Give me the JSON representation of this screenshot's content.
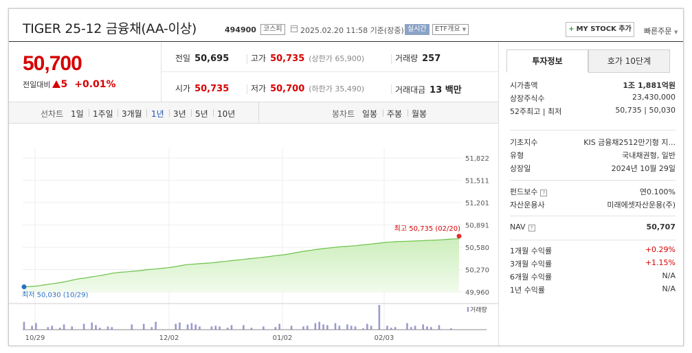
{
  "header": {
    "title": "TIGER 25-12 금융채(AA-이상)",
    "code": "494900",
    "market": "코스피",
    "datetime": "2025.02.20 11:58 기준(장중)",
    "realtime": "실시간",
    "etf_overview": "ETF개요",
    "mystock": "MY STOCK 추가",
    "quick_order": "빠른주문"
  },
  "price": {
    "current": "50,700",
    "change_label": "전일대비",
    "change": "5",
    "change_pct": "+0.01%"
  },
  "stats": {
    "prev_close_label": "전일",
    "prev_close": "50,695",
    "high_label": "고가",
    "high": "50,735",
    "upper_limit": "(상한가 65,900)",
    "volume_label": "거래량",
    "volume": "257",
    "open_label": "시가",
    "open": "50,735",
    "low_label": "저가",
    "low": "50,700",
    "lower_limit": "(하한가 35,490)",
    "amount_label": "거래대금",
    "amount": "13 백만"
  },
  "chart_tabs": {
    "line_label": "선차트",
    "periods": [
      "1일",
      "1주일",
      "3개월",
      "1년",
      "3년",
      "5년",
      "10년"
    ],
    "selected": "1년",
    "candle_label": "봉차트",
    "candles": [
      "일봉",
      "주봉",
      "월봉"
    ]
  },
  "chart_data": {
    "type": "area",
    "y_ticks": [
      "51,822",
      "51,511",
      "51,201",
      "50,891",
      "50,580",
      "50,270",
      "49,960"
    ],
    "ylim": [
      49960,
      51822
    ],
    "x_ticks": [
      "10/29",
      "12/02",
      "01/02",
      "02/03"
    ],
    "high_label": "최고 50,735 (02/20)",
    "low_label": "최저 50,030 (10/29)",
    "volume_label": "거래량",
    "series": [
      {
        "values": [
          50030,
          50033,
          50036,
          50040,
          50048,
          50056,
          50064,
          50072,
          50080,
          50088,
          50098,
          50110,
          50122,
          50134,
          50145,
          50150,
          50160,
          50170,
          50178,
          50186,
          50195,
          50206,
          50218,
          50225,
          50232,
          50236,
          50240,
          50246,
          50250,
          50255,
          50262,
          50270,
          50274,
          50278,
          50284,
          50290,
          50296,
          50304,
          50312,
          50322,
          50332,
          50340,
          50344,
          50348,
          50352,
          50356,
          50360,
          50364,
          50370,
          50376,
          50382,
          50388,
          50394,
          50400,
          50406,
          50412,
          50418,
          50424,
          50430,
          50436,
          50442,
          50448,
          50456,
          50464,
          50470,
          50476,
          50484,
          50494,
          50504,
          50514,
          50524,
          50532,
          50540,
          50548,
          50556,
          50562,
          50568,
          50574,
          50580,
          50586,
          50590,
          50594,
          50598,
          50602,
          50608,
          50614,
          50620,
          50626,
          50632,
          50638,
          50644,
          50650,
          50654,
          50658,
          50660,
          50662,
          50664,
          50666,
          50668,
          50670,
          50673,
          50676,
          50678,
          50680,
          50683,
          50686,
          50690,
          50694,
          50697,
          50700
        ]
      }
    ],
    "volume": [
      12,
      0,
      6,
      10,
      0,
      0,
      4,
      6,
      0,
      3,
      8,
      0,
      5,
      0,
      0,
      9,
      0,
      11,
      7,
      3,
      0,
      5,
      4,
      0,
      0,
      0,
      0,
      8,
      0,
      0,
      9,
      0,
      4,
      12,
      0,
      0,
      0,
      0,
      9,
      11,
      0,
      8,
      10,
      8,
      5,
      0,
      0,
      5,
      6,
      5,
      0,
      3,
      7,
      0,
      0,
      7,
      0,
      3,
      0,
      0,
      5,
      0,
      0,
      4,
      9,
      0,
      0,
      6,
      0,
      0,
      5,
      6,
      0,
      10,
      12,
      8,
      7,
      0,
      10,
      6,
      0,
      8,
      6,
      5,
      0,
      2,
      9,
      6,
      0,
      38,
      0,
      6,
      3,
      4,
      0,
      0,
      10,
      4,
      6,
      0,
      8,
      5,
      4,
      0,
      7,
      0,
      0,
      2,
      0,
      0
    ],
    "volume_max": 38
  },
  "right_panel": {
    "tab_invest": "투자정보",
    "tab_hoga": "호가 10단계",
    "s1": [
      {
        "k": "시가총액",
        "v": "1조 1,881억원",
        "bold": true
      },
      {
        "k": "상장주식수",
        "v": "23,430,000"
      },
      {
        "k": "52주최고 | 최저",
        "v": "50,735 | 50,030"
      }
    ],
    "s2": [
      {
        "k": "기초지수",
        "v": "KIS 금융채2512만기형 지..."
      },
      {
        "k": "유형",
        "v": "국내채권형, 일반"
      },
      {
        "k": "상장일",
        "v": "2024년 10월 29일"
      }
    ],
    "s3": [
      {
        "k": "펀드보수",
        "v": "연0.100%",
        "q": true
      },
      {
        "k": "자산운용사",
        "v": "미래에셋자산운용(주)"
      }
    ],
    "nav_label": "NAV",
    "nav_value": "50,707",
    "s5": [
      {
        "k": "1개월 수익률",
        "v": "+0.29%",
        "red": true
      },
      {
        "k": "3개월 수익률",
        "v": "+1.15%",
        "red": true
      },
      {
        "k": "6개월 수익률",
        "v": "N/A"
      },
      {
        "k": "1년 수익률",
        "v": "N/A"
      }
    ]
  }
}
